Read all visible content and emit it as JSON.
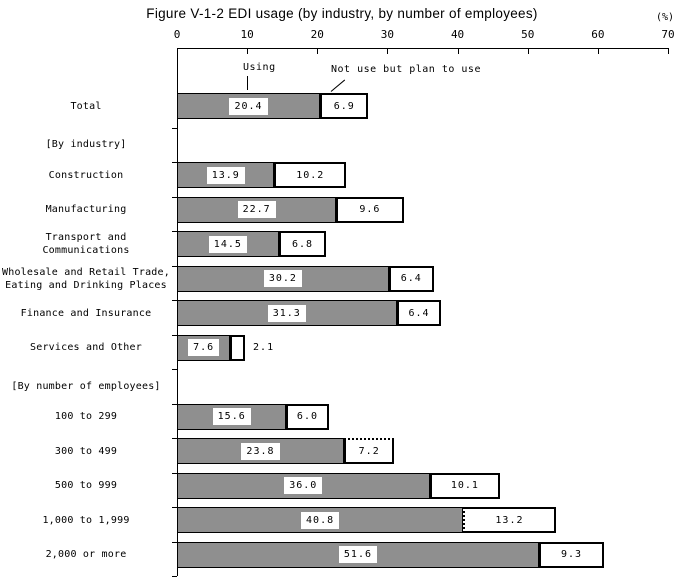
{
  "title": "Figure V-1-2 EDI usage (by industry, by number of employees)",
  "unit_label": "(%)",
  "legend": {
    "using": "Using",
    "plan": "Not use but plan to use"
  },
  "colors": {
    "using_fill": "#8f8f8f",
    "plan_fill": "#ffffff",
    "border": "#000000",
    "background": "#ffffff"
  },
  "chart_data": {
    "type": "bar",
    "orientation": "horizontal-stacked",
    "title": "Figure V-1-2 EDI usage (by industry, by number of employees)",
    "xlabel": "(%)",
    "xlim": [
      0,
      70
    ],
    "x_ticks": [
      "0",
      "10",
      "20",
      "30",
      "40",
      "50",
      "60",
      "70"
    ],
    "grid": false,
    "legend_position": "top-inline-with-pointers",
    "series_names": [
      "Using",
      "Not use but plan to use"
    ],
    "rows": [
      {
        "label": "Total",
        "using": "20.4",
        "plan": "6.9"
      },
      {
        "label": "[By industry]",
        "header": true
      },
      {
        "label": "Construction",
        "using": "13.9",
        "plan": "10.2"
      },
      {
        "label": "Manufacturing",
        "using": "22.7",
        "plan": "9.6"
      },
      {
        "label": "Transport and Communications",
        "using": "14.5",
        "plan": "6.8"
      },
      {
        "label": "Wholesale and Retail Trade,\nEating and Drinking Places",
        "using": "30.2",
        "plan": "6.4"
      },
      {
        "label": "Finance and Insurance",
        "using": "31.3",
        "plan": "6.4"
      },
      {
        "label": "Services and Other",
        "using": "7.6",
        "plan": "2.1",
        "plan_label_outside": true
      },
      {
        "label": "[By number of employees]",
        "header": true
      },
      {
        "label": "100 to 299",
        "using": "15.6",
        "plan": "6.0"
      },
      {
        "label": "300 to 499",
        "using": "23.8",
        "plan": "7.2",
        "plan_style": "dotted-top"
      },
      {
        "label": "500 to 999",
        "using": "36.0",
        "plan": "10.1"
      },
      {
        "label": "1,000 to 1,999",
        "using": "40.8",
        "plan": "13.2",
        "plan_style": "dotted-left"
      },
      {
        "label": "2,000 or more",
        "using": "51.6",
        "plan": "9.3"
      }
    ]
  }
}
